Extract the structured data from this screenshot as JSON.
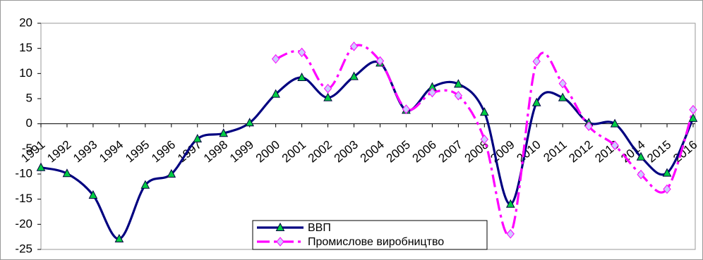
{
  "chart_data": {
    "type": "line",
    "categories": [
      "1991",
      "1992",
      "1993",
      "1994",
      "1995",
      "1996",
      "1997",
      "1998",
      "1999",
      "2000",
      "2001",
      "2002",
      "2003",
      "2004",
      "2005",
      "2006",
      "2007",
      "2008",
      "2009",
      "2010",
      "2011",
      "2012",
      "2013",
      "2014",
      "2015",
      "2016"
    ],
    "series": [
      {
        "name": "ВВП",
        "color": "#000080",
        "marker": "triangle",
        "marker_color": "#00cc44",
        "values": [
          -8.7,
          -9.9,
          -14.2,
          -22.9,
          -12.2,
          -10.0,
          -3.0,
          -1.9,
          0.2,
          5.9,
          9.2,
          5.2,
          9.4,
          12.1,
          2.7,
          7.3,
          7.9,
          2.3,
          -16.0,
          4.2,
          5.2,
          0.2,
          0.0,
          -6.6,
          -9.8,
          1.1
        ]
      },
      {
        "name": "Промислове виробництво",
        "color": "#ff00ff",
        "marker": "diamond",
        "marker_color": "#ccccff",
        "dash": "dashdot",
        "values": [
          null,
          null,
          null,
          null,
          null,
          null,
          null,
          null,
          null,
          12.9,
          14.2,
          7.0,
          15.4,
          12.5,
          2.9,
          6.2,
          5.6,
          -3.1,
          -21.9,
          12.4,
          8.0,
          -0.5,
          -4.3,
          -10.1,
          -13.0,
          2.8
        ]
      }
    ],
    "ylim": [
      -25,
      20
    ],
    "yticks": [
      -25,
      -20,
      -15,
      -10,
      -5,
      0,
      5,
      10,
      15,
      20
    ],
    "grid": false,
    "legend": "bottom"
  }
}
